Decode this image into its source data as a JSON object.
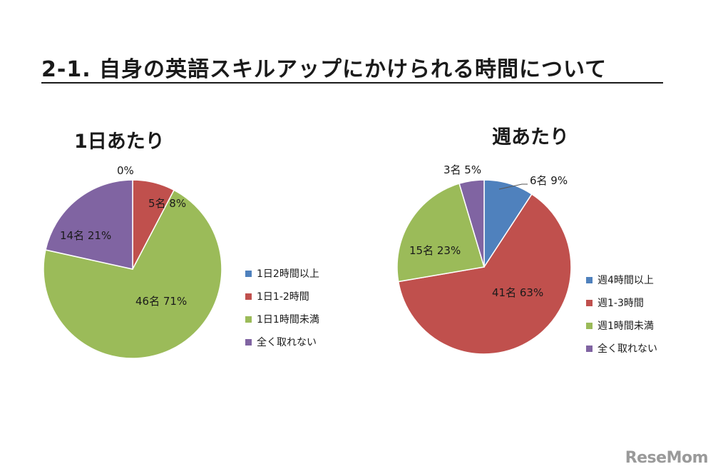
{
  "header": {
    "title": "2-1.  自身の英語スキルアップにかけられる時間について"
  },
  "watermark": "ReseMom",
  "colors": {
    "blue": "#4f81bd",
    "red": "#c0504d",
    "green": "#9bbb59",
    "purple": "#8064a2"
  },
  "chart_data": [
    {
      "type": "pie",
      "title": "1日あたり",
      "legend_position": "right",
      "slices": [
        {
          "name": "1日2時間以上",
          "count": 0,
          "percent": 0,
          "label": "0%",
          "color": "#4f81bd"
        },
        {
          "name": "1日1-2時間",
          "count": 5,
          "percent": 8,
          "label": "5名 8%",
          "color": "#c0504d"
        },
        {
          "name": "1日1時間未満",
          "count": 46,
          "percent": 71,
          "label": "46名 71%",
          "color": "#9bbb59"
        },
        {
          "name": "全く取れない",
          "count": 14,
          "percent": 21,
          "label": "14名 21%",
          "color": "#8064a2"
        }
      ]
    },
    {
      "type": "pie",
      "title": "週あたり",
      "legend_position": "right",
      "slices": [
        {
          "name": "週4時間以上",
          "count": 6,
          "percent": 9,
          "label": "6名 9%",
          "color": "#4f81bd"
        },
        {
          "name": "週1-3時間",
          "count": 41,
          "percent": 63,
          "label": "41名 63%",
          "color": "#c0504d"
        },
        {
          "name": "週1時間未満",
          "count": 15,
          "percent": 23,
          "label": "15名 23%",
          "color": "#9bbb59"
        },
        {
          "name": "全く取れない",
          "count": 3,
          "percent": 5,
          "label": "3名 5%",
          "color": "#8064a2"
        }
      ]
    }
  ]
}
